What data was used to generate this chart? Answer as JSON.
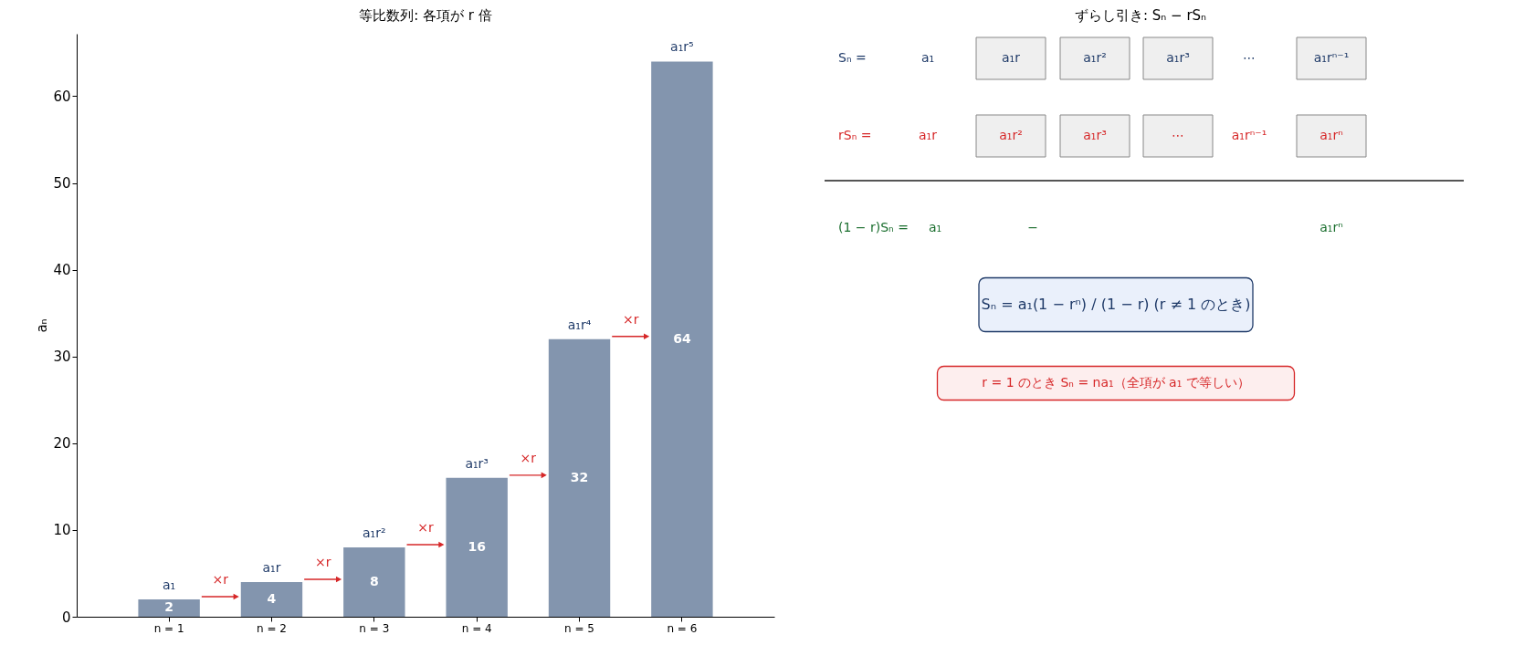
{
  "chart_data": [
    {
      "type": "bar",
      "title": "等比数列: 各項が r 倍",
      "ylabel": "aₙ",
      "categories": [
        "n = 1",
        "n = 2",
        "n = 3",
        "n = 4",
        "n = 5",
        "n = 6"
      ],
      "values": [
        2,
        4,
        8,
        16,
        32,
        64
      ],
      "color": "#8395ae",
      "data_labels": true,
      "ylim": [
        0,
        67.2
      ],
      "yticks": [
        0,
        10,
        20,
        30,
        40,
        50,
        60
      ],
      "grid": false,
      "annotations": [
        {
          "text": "a₁",
          "x": "n = 1",
          "y": 2
        },
        {
          "text": "a₁r",
          "x": "n = 2",
          "y": 4
        },
        {
          "text": "a₁r²",
          "x": "n = 3",
          "y": 8
        },
        {
          "text": "a₁r³",
          "x": "n = 4",
          "y": 16
        },
        {
          "text": "a₁r⁴",
          "x": "n = 5",
          "y": 32
        },
        {
          "text": "a₁r⁵",
          "x": "n = 6",
          "y": 64
        },
        "×r",
        "×r",
        "×r",
        "×r",
        "×r"
      ]
    },
    {
      "type": "other",
      "title": "ずらし引き: Sₙ − rSₙ",
      "annotations": [
        "Sₙ =",
        "a₁",
        "a₁r",
        "a₁r²",
        "a₁r³",
        "⋯",
        "a₁rⁿ⁻¹",
        "rSₙ =",
        "a₁r",
        "a₁r²",
        "a₁r³",
        "⋯",
        "a₁rⁿ⁻¹",
        "a₁rⁿ",
        "(1 − r)Sₙ =",
        "a₁",
        "−",
        "a₁rⁿ",
        "Sₙ = a₁(1 − rⁿ) / (1 − r)   (r ≠ 1 のとき)",
        "r = 1 のとき Sₙ = na₁（全項が a₁ で等しい）"
      ]
    }
  ]
}
